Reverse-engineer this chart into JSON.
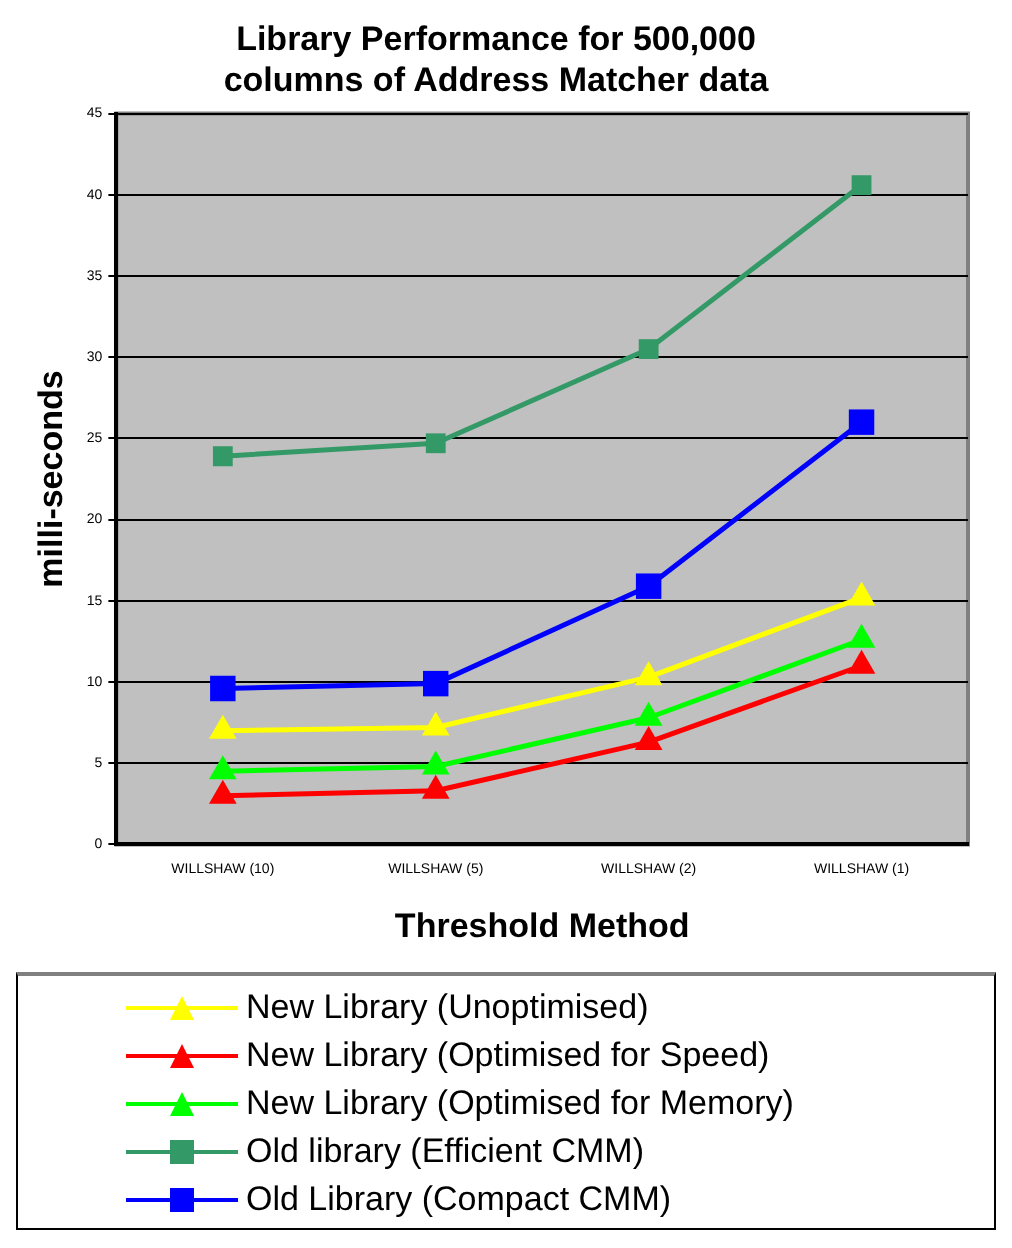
{
  "chart_data": {
    "type": "line",
    "title": "Library Performance for 500,000 columns of Address Matcher data",
    "xlabel": "Threshold Method",
    "ylabel": "milli-seconds",
    "categories": [
      "WILLSHAW (10)",
      "WILLSHAW (5)",
      "WILLSHAW (2)",
      "WILLSHAW (1)"
    ],
    "ylim": [
      0,
      45
    ],
    "yticks": [
      0,
      5,
      10,
      15,
      20,
      25,
      30,
      35,
      40,
      45
    ],
    "grid": "y",
    "legend": "bottom",
    "series": [
      {
        "name": "New Library (Unoptimised)",
        "color": "#ffff00",
        "marker": "triangle",
        "values": [
          7.0,
          7.2,
          10.3,
          15.2
        ]
      },
      {
        "name": "New Library (Optimised for Speed)",
        "color": "#ff0000",
        "marker": "triangle",
        "values": [
          3.0,
          3.3,
          6.3,
          11.0
        ]
      },
      {
        "name": "New Library (Optimised for Memory)",
        "color": "#00ff00",
        "marker": "triangle",
        "values": [
          4.5,
          4.8,
          7.8,
          12.6
        ]
      },
      {
        "name": "Old library (Efficient CMM)",
        "color": "#339966",
        "marker": "square",
        "values": [
          23.9,
          24.7,
          30.5,
          40.6
        ]
      },
      {
        "name": "Old Library (Compact CMM)",
        "color": "#0000ff",
        "marker": "square",
        "values": [
          9.6,
          9.9,
          15.9,
          26.0
        ]
      }
    ]
  }
}
